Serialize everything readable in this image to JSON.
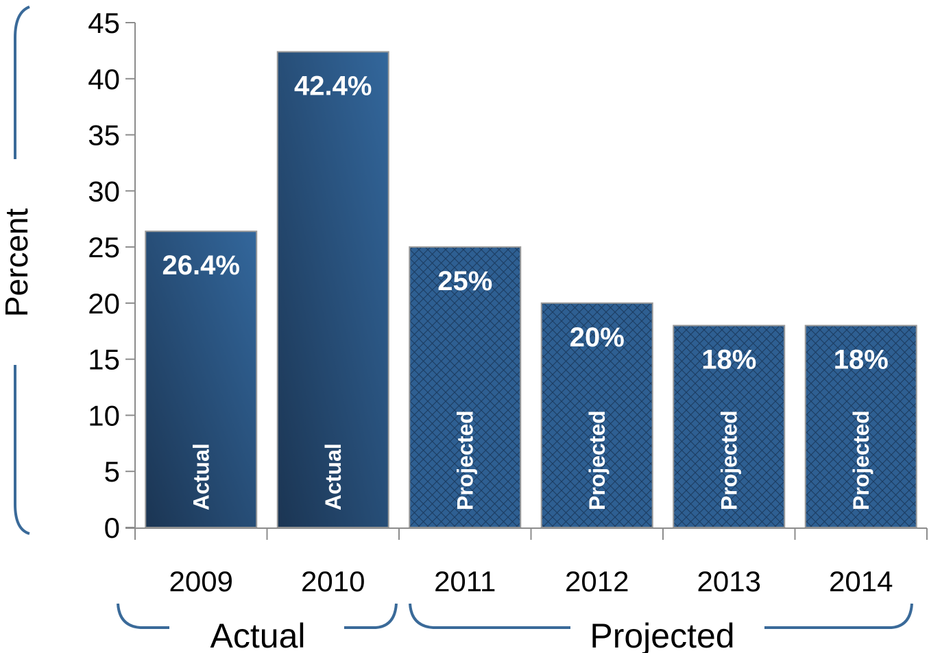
{
  "chart_data": {
    "type": "bar",
    "categories": [
      "2009",
      "2010",
      "2011",
      "2012",
      "2013",
      "2014"
    ],
    "values": [
      26.4,
      42.4,
      25,
      20,
      18,
      18
    ],
    "data_labels": [
      "26.4%",
      "42.4%",
      "25%",
      "20%",
      "18%",
      "18%"
    ],
    "bar_tags": [
      "Actual",
      "Actual",
      "Projected",
      "Projected",
      "Projected",
      "Projected"
    ],
    "bar_styles": [
      "solid",
      "solid",
      "hatched",
      "hatched",
      "hatched",
      "hatched"
    ],
    "ylabel": "Percent",
    "ylim": [
      0,
      45
    ],
    "yticks": [
      "0",
      "5",
      "10",
      "15",
      "20",
      "25",
      "30",
      "35",
      "40",
      "45"
    ],
    "groups": [
      {
        "label": "Actual",
        "categories": [
          "2009",
          "2010"
        ]
      },
      {
        "label": "Projected",
        "categories": [
          "2011",
          "2012",
          "2013",
          "2014"
        ]
      }
    ],
    "colors": {
      "bar": "#2e5f92",
      "bar_dark": "#1b3553",
      "bracket": "#3a6a99"
    },
    "grid": false
  }
}
